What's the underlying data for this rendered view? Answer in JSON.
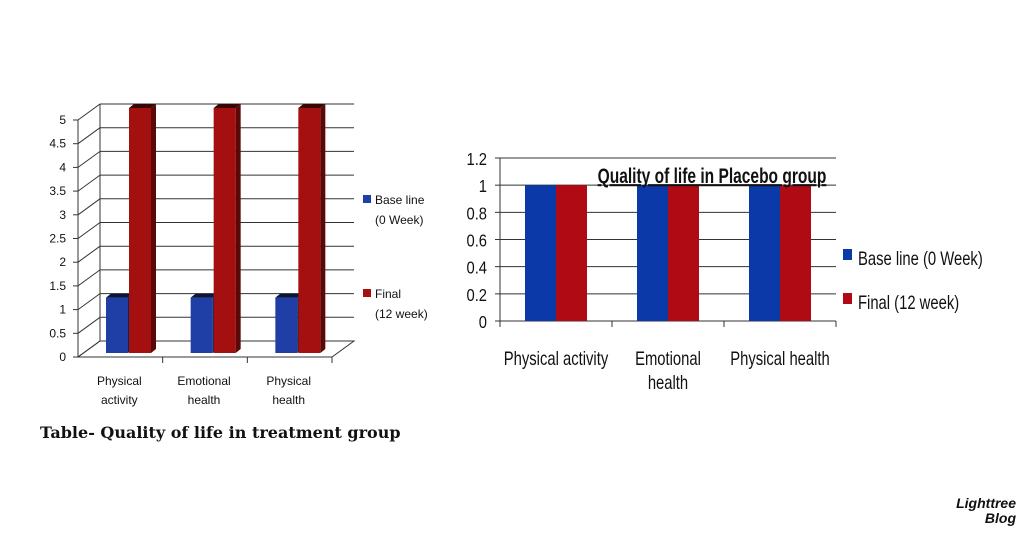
{
  "chart_data": [
    {
      "type": "bar",
      "style": "3d",
      "title": "",
      "categories": [
        [
          "Physical",
          "activity"
        ],
        [
          "Emotional",
          "health"
        ],
        [
          "Physical",
          "health"
        ]
      ],
      "series": [
        {
          "name": [
            "Base line",
            "(0 Week)"
          ],
          "color": "#1f3fa6",
          "values": [
            1,
            1,
            1
          ]
        },
        {
          "name": [
            "Final",
            "(12 week)"
          ],
          "color": "#a40f0f",
          "values": [
            5,
            5,
            5
          ]
        }
      ],
      "yticks": [
        "0",
        "0.5",
        "1",
        "1.5",
        "2",
        "2.5",
        "3",
        "3.5",
        "4",
        "4.5",
        "5"
      ],
      "ylim": [
        0,
        5
      ],
      "grid": true,
      "legend": "right"
    },
    {
      "type": "bar",
      "title": "Quality of life in Placebo group",
      "categories": [
        [
          "Physical activity"
        ],
        [
          "Emotional",
          "health"
        ],
        [
          "Physical health"
        ]
      ],
      "series": [
        {
          "name": "Base line    (0 Week)",
          "color": "#0b3aa8",
          "values": [
            1,
            1,
            1
          ]
        },
        {
          "name": "Final        (12 week)",
          "color": "#b00b14",
          "values": [
            1,
            1,
            1
          ]
        }
      ],
      "yticks": [
        "0",
        "0.2",
        "0.4",
        "0.6",
        "0.8",
        "1",
        "1.2"
      ],
      "ylim": [
        0,
        1.2
      ],
      "grid": true,
      "legend": "right"
    }
  ],
  "caption": "Table- Quality of life in treatment group",
  "watermark": [
    "Lighttree",
    "Blog"
  ]
}
